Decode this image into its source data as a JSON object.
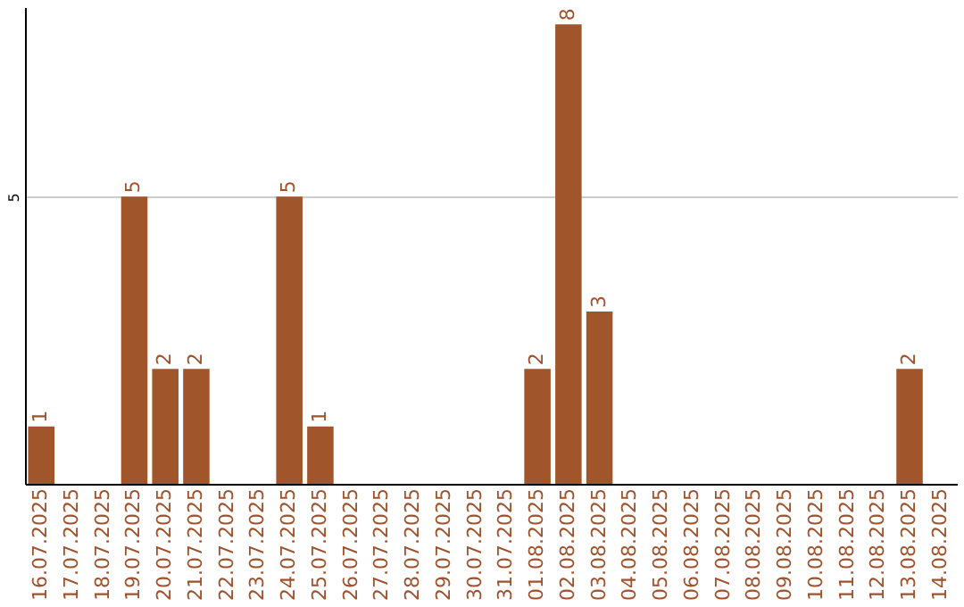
{
  "chart_data": {
    "type": "bar",
    "categories": [
      "16.07.2025",
      "17.07.2025",
      "18.07.2025",
      "19.07.2025",
      "20.07.2025",
      "21.07.2025",
      "22.07.2025",
      "23.07.2025",
      "24.07.2025",
      "25.07.2025",
      "26.07.2025",
      "27.07.2025",
      "28.07.2025",
      "29.07.2025",
      "30.07.2025",
      "31.07.2025",
      "01.08.2025",
      "02.08.2025",
      "03.08.2025",
      "04.08.2025",
      "05.08.2025",
      "06.08.2025",
      "07.08.2025",
      "08.08.2025",
      "09.08.2025",
      "10.08.2025",
      "11.08.2025",
      "12.08.2025",
      "13.08.2025",
      "14.08.2025"
    ],
    "values": [
      1,
      0,
      0,
      5,
      2,
      2,
      0,
      0,
      5,
      1,
      0,
      0,
      0,
      0,
      0,
      0,
      2,
      8,
      3,
      0,
      0,
      0,
      0,
      0,
      0,
      0,
      0,
      0,
      2,
      0
    ],
    "value_labels": [
      "1",
      null,
      null,
      "5",
      "2",
      "2",
      null,
      null,
      "5",
      "1",
      null,
      null,
      null,
      null,
      null,
      null,
      "2",
      "8",
      "3",
      null,
      null,
      null,
      null,
      null,
      null,
      null,
      null,
      null,
      "2",
      null
    ],
    "color": "#a0562a",
    "ylim": [
      0,
      8.3
    ],
    "yticks": [
      5
    ],
    "grid": "y"
  }
}
